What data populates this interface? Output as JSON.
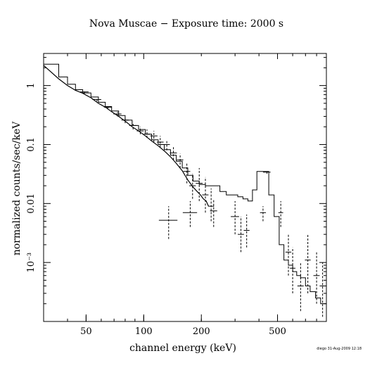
{
  "stamp": "diego 31-Aug-2009 12:18",
  "chart_data": {
    "type": "line",
    "title": "Nova Muscae − Exposure time: 2000 s",
    "xlabel": "channel energy (keV)",
    "ylabel": "normalized counts/sec/keV",
    "x_scale": "log",
    "y_scale": "log",
    "xlim": [
      30,
      900
    ],
    "ylim": [
      0.0001,
      3.5
    ],
    "x_ticks": [
      {
        "value": 50,
        "label": "50"
      },
      {
        "value": 100,
        "label": "100"
      },
      {
        "value": 200,
        "label": "200"
      },
      {
        "value": 500,
        "label": "500"
      }
    ],
    "y_ticks": [
      {
        "value": 1,
        "label": "1"
      },
      {
        "value": 0.1,
        "label": "0.1"
      },
      {
        "value": 0.01,
        "label": "0.01"
      },
      {
        "value": 0.001,
        "label": "10⁻³"
      }
    ],
    "grid": false,
    "series": [
      {
        "style": "solid",
        "color": "#000000",
        "role": "model",
        "x": [
          30,
          36,
          40,
          44,
          48,
          53,
          58,
          63,
          68,
          74,
          80,
          87,
          94,
          102,
          110,
          119,
          128,
          138,
          148,
          159,
          170,
          181,
          190,
          198,
          205,
          212,
          218
        ],
        "y": [
          2.2,
          1.3,
          1.0,
          0.83,
          0.74,
          0.62,
          0.5,
          0.43,
          0.36,
          0.3,
          0.25,
          0.2,
          0.17,
          0.14,
          0.115,
          0.095,
          0.078,
          0.062,
          0.048,
          0.036,
          0.025,
          0.019,
          0.016,
          0.014,
          0.012,
          0.011,
          0.009
        ]
      },
      {
        "style": "step",
        "color": "#000000",
        "role": "model",
        "x": [
          30,
          36,
          40,
          44,
          48,
          53,
          58,
          63,
          68,
          74,
          80,
          87,
          94,
          102,
          110,
          119,
          128,
          138,
          148,
          159,
          170,
          181,
          195,
          210,
          230,
          250,
          270,
          290,
          310,
          330,
          350,
          370,
          390,
          420,
          450,
          480,
          510,
          540,
          570,
          600,
          630,
          660,
          700,
          740,
          790,
          840,
          900
        ],
        "y": [
          2.3,
          1.4,
          1.05,
          0.85,
          0.75,
          0.64,
          0.52,
          0.44,
          0.37,
          0.31,
          0.26,
          0.21,
          0.18,
          0.15,
          0.12,
          0.1,
          0.082,
          0.066,
          0.052,
          0.04,
          0.03,
          0.024,
          0.021,
          0.02,
          0.02,
          0.016,
          0.014,
          0.014,
          0.013,
          0.012,
          0.011,
          0.017,
          0.035,
          0.035,
          0.014,
          0.006,
          0.002,
          0.0011,
          0.0009,
          0.0007,
          0.0006,
          0.00055,
          0.0004,
          0.00032,
          0.00025,
          0.0002,
          0.00018
        ]
      },
      {
        "style": "points",
        "color": "#000000",
        "role": "data",
        "points": [
          {
            "x": 49,
            "y": 0.78,
            "dx": 2.5,
            "ylo": 0.73,
            "yhi": 0.83
          },
          {
            "x": 57,
            "y": 0.58,
            "dx": 3,
            "ylo": 0.54,
            "yhi": 0.62
          },
          {
            "x": 65,
            "y": 0.43,
            "dx": 3,
            "ylo": 0.4,
            "yhi": 0.46
          },
          {
            "x": 73,
            "y": 0.33,
            "dx": 3.5,
            "ylo": 0.3,
            "yhi": 0.36
          },
          {
            "x": 80,
            "y": 0.26,
            "dx": 3.5,
            "ylo": 0.23,
            "yhi": 0.29
          },
          {
            "x": 88,
            "y": 0.21,
            "dx": 4,
            "ylo": 0.18,
            "yhi": 0.24
          },
          {
            "x": 96,
            "y": 0.17,
            "dx": 4,
            "ylo": 0.15,
            "yhi": 0.2
          },
          {
            "x": 104,
            "y": 0.15,
            "dx": 4,
            "ylo": 0.13,
            "yhi": 0.18
          },
          {
            "x": 113,
            "y": 0.14,
            "dx": 5,
            "ylo": 0.11,
            "yhi": 0.17
          },
          {
            "x": 122,
            "y": 0.11,
            "dx": 5,
            "ylo": 0.09,
            "yhi": 0.14
          },
          {
            "x": 132,
            "y": 0.1,
            "dx": 5,
            "ylo": 0.08,
            "yhi": 0.12
          },
          {
            "x": 143,
            "y": 0.072,
            "dx": 6,
            "ylo": 0.055,
            "yhi": 0.09
          },
          {
            "x": 155,
            "y": 0.055,
            "dx": 6,
            "ylo": 0.04,
            "yhi": 0.07
          },
          {
            "x": 168,
            "y": 0.035,
            "dx": 7,
            "ylo": 0.022,
            "yhi": 0.05
          },
          {
            "x": 180,
            "y": 0.02,
            "dx": 7,
            "ylo": 0.012,
            "yhi": 0.032
          },
          {
            "x": 195,
            "y": 0.022,
            "dx": 8,
            "ylo": 0.011,
            "yhi": 0.04
          },
          {
            "x": 210,
            "y": 0.014,
            "dx": 8,
            "ylo": 0.007,
            "yhi": 0.028
          },
          {
            "x": 225,
            "y": 0.009,
            "dx": 8,
            "ylo": 0.005,
            "yhi": 0.018
          },
          {
            "x": 135,
            "y": 0.0052,
            "dx": 15,
            "ylo": 0.0025,
            "yhi": 0.009
          },
          {
            "x": 175,
            "y": 0.007,
            "dx": 15,
            "ylo": 0.004,
            "yhi": 0.011
          },
          {
            "x": 232,
            "y": 0.0075,
            "dx": 10,
            "ylo": 0.004,
            "yhi": 0.012
          },
          {
            "x": 300,
            "y": 0.006,
            "dx": 15,
            "ylo": 0.003,
            "yhi": 0.011
          },
          {
            "x": 322,
            "y": 0.003,
            "dx": 12,
            "ylo": 0.0015,
            "yhi": 0.006
          },
          {
            "x": 345,
            "y": 0.0035,
            "dx": 12,
            "ylo": 0.0018,
            "yhi": 0.0065
          },
          {
            "x": 420,
            "y": 0.007,
            "dx": 15,
            "ylo": 0.005,
            "yhi": 0.009
          },
          {
            "x": 440,
            "y": 0.034,
            "dx": 20,
            "ylo": 0.032,
            "yhi": 0.036
          },
          {
            "x": 520,
            "y": 0.007,
            "dx": 15,
            "ylo": 0.004,
            "yhi": 0.011
          },
          {
            "x": 570,
            "y": 0.0015,
            "dx": 20,
            "ylo": 0.0006,
            "yhi": 0.003
          },
          {
            "x": 600,
            "y": 0.0008,
            "dx": 20,
            "ylo": 0.0003,
            "yhi": 0.0018
          },
          {
            "x": 660,
            "y": 0.0004,
            "dx": 25,
            "ylo": 0.00015,
            "yhi": 0.001
          },
          {
            "x": 720,
            "y": 0.0011,
            "dx": 25,
            "ylo": 0.0003,
            "yhi": 0.003
          },
          {
            "x": 800,
            "y": 0.0006,
            "dx": 30,
            "ylo": 0.0002,
            "yhi": 0.0015
          },
          {
            "x": 860,
            "y": 0.0004,
            "dx": 30,
            "ylo": 0.00012,
            "yhi": 0.001
          }
        ]
      }
    ]
  }
}
